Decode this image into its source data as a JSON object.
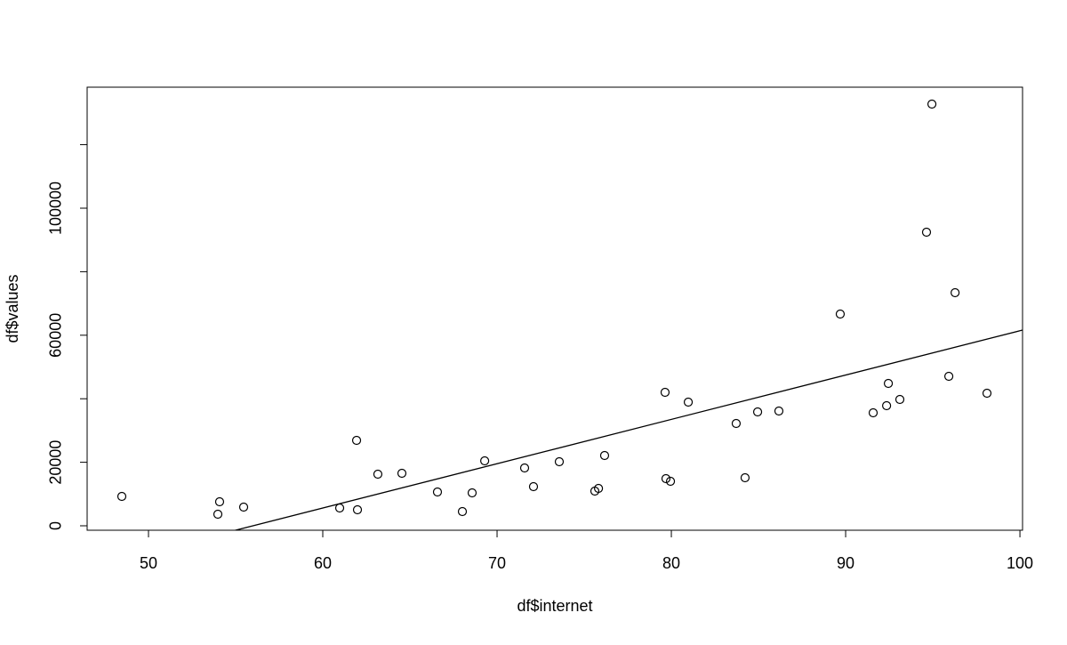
{
  "chart_data": {
    "type": "scatter",
    "x_label": "df$internet",
    "y_label": "df$values",
    "x": [
      48.47,
      54.08,
      53.98,
      55.46,
      60.97,
      61.94,
      61.99,
      63.16,
      64.54,
      66.58,
      68.01,
      68.57,
      69.29,
      71.58,
      72.09,
      73.57,
      75.61,
      75.82,
      76.17,
      79.64,
      79.69,
      79.95,
      80.97,
      83.72,
      84.23,
      84.95,
      86.17,
      89.69,
      91.58,
      92.35,
      92.45,
      93.11,
      94.64,
      94.95,
      95.92,
      96.28,
      98.11
    ],
    "values": [
      9244,
      7563,
      3641,
      5882,
      5602,
      26891,
      5042,
      16246,
      16527,
      10644,
      4482,
      10364,
      20448,
      18207,
      12325,
      20168,
      10924,
      11765,
      22129,
      42017,
      14846,
      14006,
      38936,
      32213,
      15126,
      35854,
      36134,
      66667,
      35574,
      37815,
      44818,
      39776,
      92437,
      132773,
      47059,
      73389,
      41737
    ],
    "color": "#000000",
    "fit": {
      "intercept": -78153,
      "slope": 1395.7
    },
    "xlim": [
      46.48,
      100.15
    ],
    "ylim": [
      -1400,
      138095
    ],
    "xticks": [
      50,
      60,
      70,
      80,
      90,
      100
    ],
    "yticks": [
      0,
      20000,
      {
        "value": 40000,
        "label": null
      },
      60000,
      {
        "value": 80000,
        "label": null
      },
      100000,
      {
        "value": 120000,
        "label": null
      }
    ]
  }
}
